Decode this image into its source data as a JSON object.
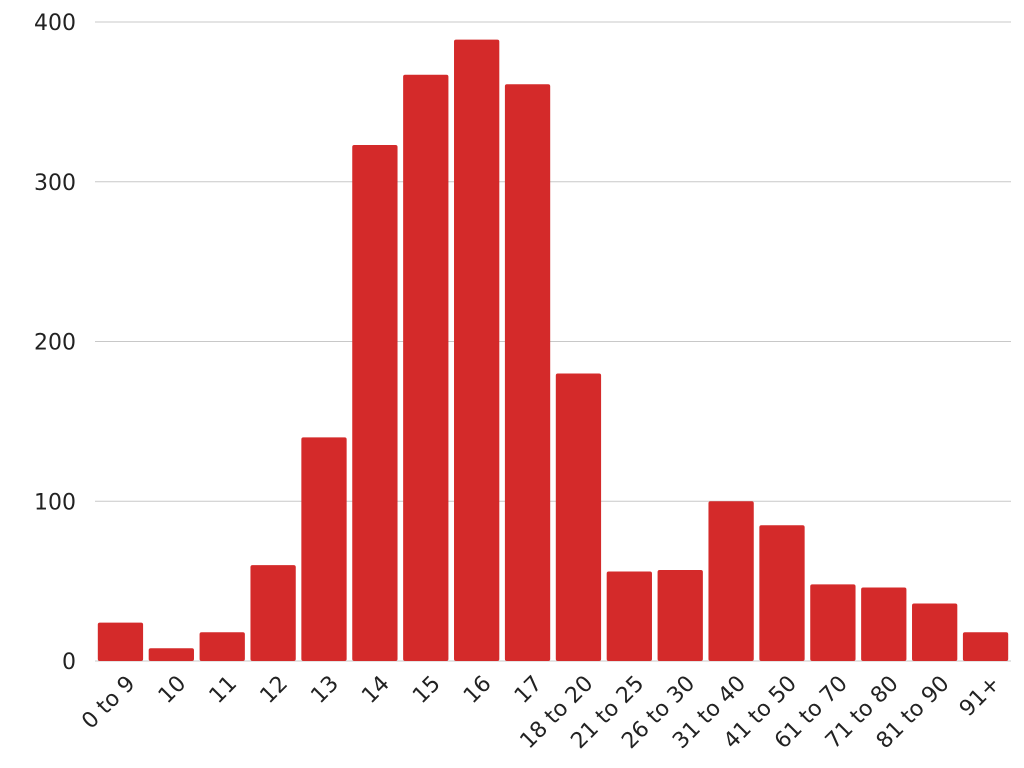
{
  "chart_data": {
    "type": "bar",
    "categories": [
      "0 to 9",
      "10",
      "11",
      "12",
      "13",
      "14",
      "15",
      "16",
      "17",
      "18 to 20",
      "21 to 25",
      "26 to 30",
      "31 to 40",
      "41 to 50",
      "61 to 70",
      "71 to 80",
      "81 to 90",
      "91+"
    ],
    "values": [
      24,
      8,
      18,
      60,
      140,
      323,
      367,
      389,
      361,
      180,
      56,
      57,
      100,
      85,
      48,
      46,
      36,
      18
    ],
    "color": "#d42a2a",
    "ylim": [
      0,
      400
    ],
    "yticks": [
      0,
      100,
      200,
      300,
      400
    ],
    "grid": true
  }
}
